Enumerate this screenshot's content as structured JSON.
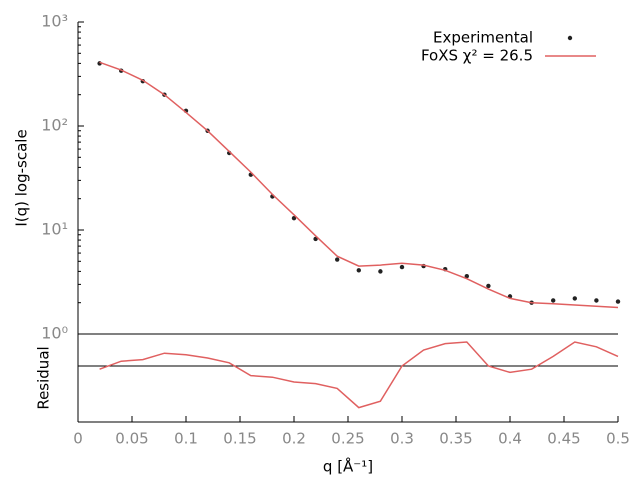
{
  "chart_data": [
    {
      "type": "line",
      "y_label": "I(q) log-scale",
      "log_y": true,
      "xlim": [
        0,
        0.5
      ],
      "ylim": [
        1,
        1000
      ],
      "yticks": [
        {
          "value": 1,
          "label": "10⁰"
        },
        {
          "value": 10,
          "label": "10¹"
        },
        {
          "value": 100,
          "label": "10²"
        },
        {
          "value": 1000,
          "label": "10³"
        }
      ],
      "legend": "upper right",
      "x": [
        0.02,
        0.04,
        0.06,
        0.08,
        0.1,
        0.12,
        0.14,
        0.16,
        0.18,
        0.2,
        0.22,
        0.24,
        0.26,
        0.28,
        0.3,
        0.32,
        0.34,
        0.36,
        0.38,
        0.4,
        0.42,
        0.44,
        0.46,
        0.48,
        0.5
      ],
      "series": [
        {
          "name": "Experimental",
          "color": "#222222",
          "style": "points",
          "values": [
            400,
            340,
            270,
            200,
            140,
            90,
            55,
            34,
            21,
            13,
            8.2,
            5.2,
            4.1,
            4.0,
            4.4,
            4.5,
            4.2,
            3.6,
            2.9,
            2.3,
            2.0,
            2.1,
            2.2,
            2.1,
            2.05
          ]
        },
        {
          "name": "FoXS χ² = 26.5",
          "color": "#e06060",
          "style": "line",
          "values": [
            410,
            345,
            275,
            200,
            135,
            90,
            57,
            36,
            22,
            14,
            8.8,
            5.6,
            4.5,
            4.6,
            4.8,
            4.6,
            4.1,
            3.4,
            2.7,
            2.2,
            2.0,
            1.95,
            1.9,
            1.85,
            1.8
          ]
        }
      ]
    },
    {
      "type": "line",
      "y_label": "Residual",
      "x_label": "q [Å⁻¹]",
      "xlim": [
        0,
        0.5
      ],
      "ylim": [
        -1.75,
        1
      ],
      "reference_line": 0,
      "xticks": [
        0,
        0.05,
        0.1,
        0.15,
        0.2,
        0.25,
        0.3,
        0.35,
        0.4,
        0.45,
        0.5
      ],
      "x": [
        0.02,
        0.04,
        0.06,
        0.08,
        0.1,
        0.12,
        0.14,
        0.16,
        0.18,
        0.2,
        0.22,
        0.24,
        0.26,
        0.28,
        0.3,
        0.32,
        0.34,
        0.36,
        0.38,
        0.4,
        0.42,
        0.44,
        0.46,
        0.48,
        0.5
      ],
      "series": [
        {
          "color": "#e06060",
          "values": [
            -0.1,
            0.15,
            0.2,
            0.4,
            0.35,
            0.25,
            0.1,
            -0.3,
            -0.35,
            -0.5,
            -0.55,
            -0.7,
            -1.3,
            -1.1,
            0.0,
            0.5,
            0.7,
            0.75,
            0.0,
            -0.2,
            -0.1,
            0.3,
            0.75,
            0.6,
            0.3
          ]
        }
      ]
    }
  ]
}
